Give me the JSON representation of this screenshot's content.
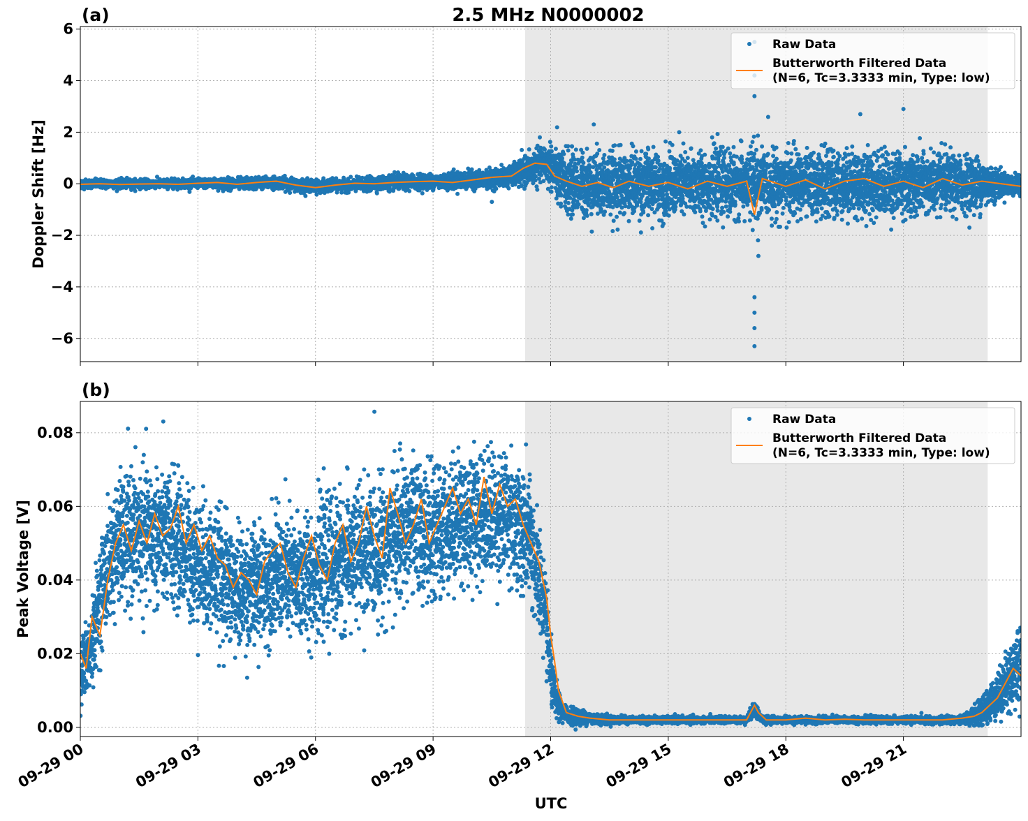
{
  "chart_data": [
    {
      "panel_label": "(a)",
      "title": "2.5 MHz N0000002",
      "type": "scatter",
      "ylabel": "Doppler Shift [Hz]",
      "ylim": [
        -6.9,
        6.1
      ],
      "xlim_hours": [
        0,
        24
      ],
      "yticks": [
        6,
        4,
        2,
        0,
        -2,
        -4,
        -6
      ],
      "ytick_labels": [
        "6",
        "4",
        "2",
        "0",
        "−2",
        "−4",
        "−6"
      ],
      "grid": true,
      "legend_position": "top-right",
      "legend": [
        "Raw Data",
        "Butterworth Filtered Data",
        "(N=6, Tc=3.3333 min, Type: low)"
      ],
      "shaded_region_hours": [
        11.35,
        23.15
      ],
      "series": [
        {
          "name": "Raw Data",
          "style": "points",
          "color": "#1f77b4",
          "x": [
            0,
            1,
            2,
            3,
            4,
            5,
            6,
            7,
            8,
            9,
            10,
            10.5,
            11,
            11.4,
            11.8,
            12,
            12.2,
            12.5,
            13,
            14,
            15,
            16,
            17,
            17.2,
            17.4,
            18,
            19,
            20,
            21,
            22,
            23,
            23.5,
            24
          ],
          "y_center": [
            0,
            0,
            0,
            0.02,
            0,
            0.05,
            -0.1,
            -0.05,
            0.05,
            0.1,
            0.15,
            0.2,
            0.3,
            0.5,
            0.8,
            0.7,
            0.2,
            0,
            0,
            0,
            0,
            0,
            0,
            0,
            0,
            0,
            0,
            0,
            0,
            0,
            0,
            0,
            -0.1
          ],
          "y_spread": [
            0.15,
            0.15,
            0.15,
            0.15,
            0.2,
            0.2,
            0.2,
            0.2,
            0.25,
            0.25,
            0.3,
            0.3,
            0.35,
            0.5,
            0.6,
            0.8,
            1.0,
            1.1,
            1.1,
            1.1,
            1.1,
            1.1,
            1.1,
            1.5,
            1.1,
            1.1,
            1.1,
            1.1,
            1.1,
            1.0,
            0.9,
            0.4,
            0.3
          ],
          "outliers": [
            {
              "x": 17.2,
              "y": 5.5
            },
            {
              "x": 17.2,
              "y": 4.2
            },
            {
              "x": 17.2,
              "y": 3.4
            },
            {
              "x": 17.2,
              "y": -4.4
            },
            {
              "x": 17.2,
              "y": -5.0
            },
            {
              "x": 17.2,
              "y": -5.6
            },
            {
              "x": 17.2,
              "y": -6.3
            },
            {
              "x": 17.3,
              "y": -2.8
            },
            {
              "x": 21.0,
              "y": 2.9
            },
            {
              "x": 19.9,
              "y": 2.7
            },
            {
              "x": 13.1,
              "y": 2.3
            },
            {
              "x": 10.5,
              "y": -0.7
            }
          ]
        },
        {
          "name": "Butterworth Filtered Data",
          "style": "line",
          "color": "#ff7f0e",
          "x": [
            0,
            0.5,
            1,
            1.5,
            2,
            2.5,
            3,
            3.5,
            4,
            4.5,
            5,
            5.5,
            6,
            6.5,
            7,
            7.5,
            8,
            8.5,
            9,
            9.5,
            10,
            10.5,
            11,
            11.3,
            11.6,
            11.9,
            12.1,
            12.4,
            12.8,
            13.2,
            13.6,
            14,
            14.5,
            15,
            15.5,
            16,
            16.5,
            17,
            17.2,
            17.4,
            18,
            18.5,
            19,
            19.5,
            20,
            20.5,
            21,
            21.5,
            22,
            22.5,
            23,
            23.5,
            24
          ],
          "y": [
            -0.02,
            0,
            -0.03,
            -0.01,
            0,
            -0.02,
            0.02,
            0.05,
            -0.02,
            0.05,
            0.1,
            -0.05,
            -0.15,
            -0.05,
            0.02,
            0,
            0.05,
            0.08,
            0.1,
            0.05,
            0.15,
            0.25,
            0.3,
            0.6,
            0.8,
            0.75,
            0.3,
            0.1,
            -0.1,
            0.05,
            -0.15,
            0.1,
            -0.1,
            0.05,
            -0.2,
            0.1,
            -0.1,
            0.1,
            -1.2,
            0.2,
            -0.1,
            0.15,
            -0.2,
            0.1,
            0.2,
            -0.1,
            0.1,
            -0.15,
            0.2,
            -0.05,
            0.1,
            0,
            -0.1
          ]
        }
      ]
    },
    {
      "panel_label": "(b)",
      "title": "",
      "type": "scatter",
      "ylabel": "Peak Voltage [V]",
      "xlabel": "UTC",
      "ylim": [
        -0.0025,
        0.0885
      ],
      "xlim_hours": [
        0,
        24
      ],
      "yticks": [
        0.08,
        0.06,
        0.04,
        0.02,
        0.0
      ],
      "ytick_labels": [
        "0.08",
        "0.06",
        "0.04",
        "0.02",
        "0.00"
      ],
      "xticks_hours": [
        0,
        3,
        6,
        9,
        12,
        15,
        18,
        21
      ],
      "xtick_labels": [
        "09-29 00",
        "09-29 03",
        "09-29 06",
        "09-29 09",
        "09-29 12",
        "09-29 15",
        "09-29 18",
        "09-29 21"
      ],
      "grid": true,
      "legend_position": "top-right",
      "legend": [
        "Raw Data",
        "Butterworth Filtered Data",
        "(N=6, Tc=3.3333 min, Type: low)"
      ],
      "shaded_region_hours": [
        11.35,
        23.15
      ],
      "series": [
        {
          "name": "Raw Data",
          "style": "points",
          "color": "#1f77b4",
          "x": [
            0,
            0.25,
            0.5,
            0.75,
            1,
            1.5,
            2,
            2.5,
            3,
            3.5,
            4,
            4.5,
            5,
            5.5,
            6,
            6.5,
            7,
            7.5,
            8,
            8.5,
            9,
            9.5,
            10,
            10.5,
            11,
            11.5,
            11.8,
            12,
            12.1,
            12.3,
            12.6,
            13,
            13.5,
            14,
            15,
            16,
            17,
            17.2,
            17.4,
            18,
            19,
            20,
            21,
            22,
            22.5,
            23,
            23.5,
            24
          ],
          "y_center": [
            0.015,
            0.02,
            0.035,
            0.045,
            0.05,
            0.052,
            0.052,
            0.05,
            0.045,
            0.042,
            0.037,
            0.038,
            0.042,
            0.04,
            0.042,
            0.045,
            0.047,
            0.048,
            0.052,
            0.055,
            0.052,
            0.056,
            0.057,
            0.058,
            0.057,
            0.05,
            0.035,
            0.015,
            0.008,
            0.004,
            0.003,
            0.0025,
            0.002,
            0.002,
            0.002,
            0.002,
            0.002,
            0.005,
            0.002,
            0.002,
            0.002,
            0.002,
            0.002,
            0.002,
            0.002,
            0.004,
            0.01,
            0.018
          ],
          "y_spread": [
            0.008,
            0.01,
            0.012,
            0.014,
            0.015,
            0.016,
            0.016,
            0.016,
            0.015,
            0.015,
            0.014,
            0.014,
            0.014,
            0.015,
            0.015,
            0.016,
            0.016,
            0.016,
            0.016,
            0.016,
            0.015,
            0.015,
            0.015,
            0.015,
            0.015,
            0.015,
            0.012,
            0.008,
            0.005,
            0.002,
            0.002,
            0.0015,
            0.001,
            0.0008,
            0.0008,
            0.0008,
            0.0008,
            0.002,
            0.0008,
            0.0008,
            0.0008,
            0.0008,
            0.0008,
            0.0008,
            0.001,
            0.003,
            0.006,
            0.01
          ]
        },
        {
          "name": "Butterworth Filtered Data",
          "style": "line",
          "color": "#ff7f0e",
          "x": [
            0,
            0.15,
            0.3,
            0.5,
            0.7,
            0.9,
            1.1,
            1.3,
            1.5,
            1.7,
            1.9,
            2.1,
            2.3,
            2.5,
            2.7,
            2.9,
            3.1,
            3.3,
            3.5,
            3.7,
            3.9,
            4.1,
            4.3,
            4.5,
            4.7,
            4.9,
            5.1,
            5.3,
            5.5,
            5.7,
            5.9,
            6.1,
            6.3,
            6.5,
            6.7,
            6.9,
            7.1,
            7.3,
            7.5,
            7.7,
            7.9,
            8.1,
            8.3,
            8.5,
            8.7,
            8.9,
            9.1,
            9.3,
            9.5,
            9.7,
            9.9,
            10.1,
            10.3,
            10.5,
            10.7,
            10.9,
            11.1,
            11.3,
            11.5,
            11.7,
            11.9,
            12.0,
            12.1,
            12.2,
            12.4,
            12.7,
            13,
            13.5,
            14,
            14.5,
            15,
            15.5,
            16,
            16.5,
            17,
            17.1,
            17.2,
            17.3,
            17.5,
            18,
            18.5,
            19,
            19.5,
            20,
            20.5,
            21,
            21.5,
            22,
            22.5,
            22.8,
            23,
            23.2,
            23.4,
            23.6,
            23.8,
            24
          ],
          "y": [
            0.02,
            0.016,
            0.03,
            0.025,
            0.04,
            0.05,
            0.055,
            0.048,
            0.056,
            0.05,
            0.058,
            0.052,
            0.054,
            0.06,
            0.05,
            0.055,
            0.048,
            0.052,
            0.046,
            0.044,
            0.038,
            0.042,
            0.04,
            0.036,
            0.045,
            0.048,
            0.05,
            0.042,
            0.038,
            0.046,
            0.052,
            0.044,
            0.04,
            0.05,
            0.055,
            0.045,
            0.05,
            0.06,
            0.052,
            0.046,
            0.065,
            0.058,
            0.05,
            0.055,
            0.062,
            0.05,
            0.055,
            0.06,
            0.065,
            0.058,
            0.062,
            0.055,
            0.068,
            0.058,
            0.066,
            0.06,
            0.062,
            0.055,
            0.05,
            0.045,
            0.035,
            0.025,
            0.018,
            0.01,
            0.004,
            0.003,
            0.0025,
            0.002,
            0.002,
            0.002,
            0.002,
            0.002,
            0.002,
            0.002,
            0.002,
            0.004,
            0.006,
            0.004,
            0.002,
            0.002,
            0.0025,
            0.002,
            0.0022,
            0.002,
            0.002,
            0.002,
            0.002,
            0.002,
            0.0025,
            0.003,
            0.004,
            0.006,
            0.008,
            0.012,
            0.016,
            0.014
          ]
        }
      ]
    }
  ]
}
